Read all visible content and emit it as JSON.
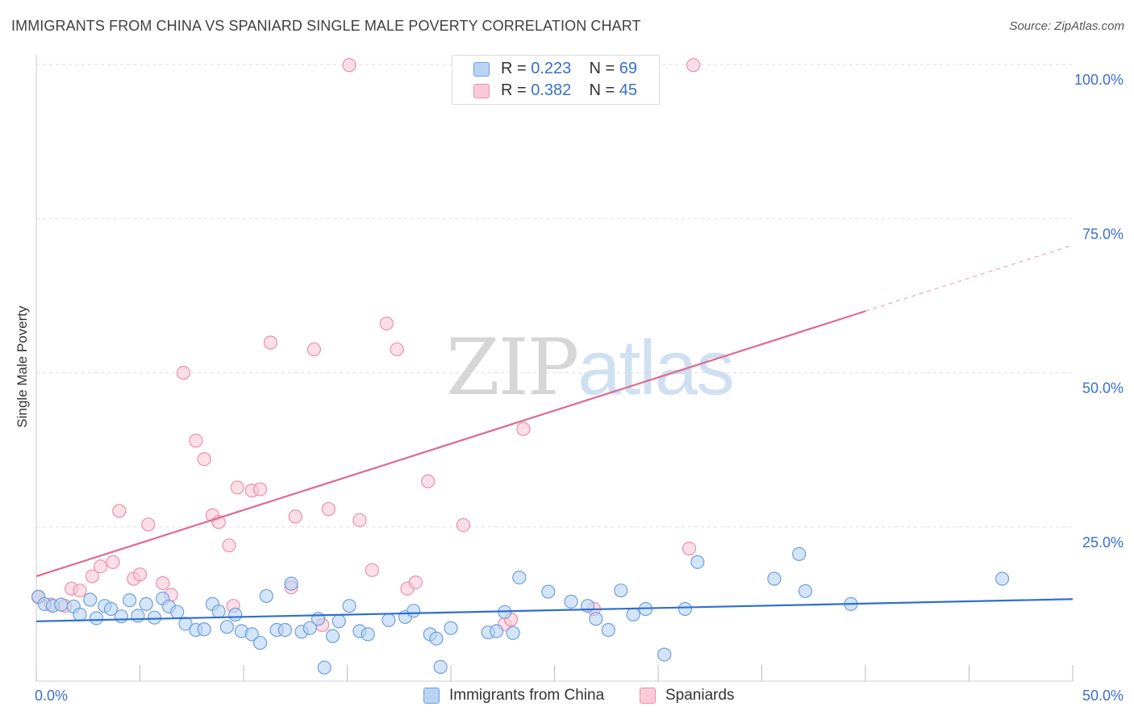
{
  "title": "IMMIGRANTS FROM CHINA VS SPANIARD SINGLE MALE POVERTY CORRELATION CHART",
  "source": "Source: ZipAtlas.com",
  "watermark": {
    "zip": "ZIP",
    "atlas": "atlas"
  },
  "legend": {
    "rows": [
      {
        "r_label": "R = ",
        "r_value": "0.223",
        "n_label": "N = ",
        "n_value": "69"
      },
      {
        "r_label": "R = ",
        "r_value": "0.382",
        "n_label": "N = ",
        "n_value": "45"
      }
    ]
  },
  "bottom_legend": [
    "Immigrants from China",
    "Spaniards"
  ],
  "colors": {
    "china_fill": "#b8d3f4",
    "china_stroke": "#6e9ee0",
    "china_line": "#2f6fcd",
    "spain_fill": "#fbc9d7",
    "spain_stroke": "#ec8fab",
    "spain_line": "#e0698f",
    "tick_label": "#3a6fc9",
    "grid": "#dddddd"
  },
  "chart_data": {
    "type": "scatter",
    "title": "IMMIGRANTS FROM CHINA VS SPANIARD SINGLE MALE POVERTY CORRELATION CHART",
    "xlabel": "",
    "ylabel": "Single Male Poverty",
    "xlim": [
      0,
      50
    ],
    "ylim": [
      0,
      100
    ],
    "x_tick_labels": [
      "0.0%",
      "50.0%"
    ],
    "y_ticks": [
      25,
      50,
      75,
      100
    ],
    "y_tick_labels": [
      "25.0%",
      "50.0%",
      "75.0%",
      "100.0%"
    ],
    "grid": true,
    "series": [
      {
        "name": "Immigrants from China",
        "r": 0.223,
        "n": 69,
        "trend": {
          "x": [
            0,
            50
          ],
          "y": [
            9.7,
            13.3
          ]
        },
        "points": [
          [
            0.1,
            13.7
          ],
          [
            0.4,
            12.5
          ],
          [
            0.8,
            12.2
          ],
          [
            1.2,
            12.4
          ],
          [
            1.8,
            12.1
          ],
          [
            2.1,
            10.8
          ],
          [
            2.6,
            13.2
          ],
          [
            2.9,
            10.2
          ],
          [
            3.3,
            12.2
          ],
          [
            3.6,
            11.7
          ],
          [
            4.1,
            10.5
          ],
          [
            4.5,
            13.1
          ],
          [
            4.9,
            10.6
          ],
          [
            5.3,
            12.5
          ],
          [
            5.7,
            10.3
          ],
          [
            6.1,
            13.4
          ],
          [
            6.4,
            12.1
          ],
          [
            6.8,
            11.2
          ],
          [
            7.2,
            9.3
          ],
          [
            7.7,
            8.3
          ],
          [
            8.1,
            8.4
          ],
          [
            8.5,
            12.5
          ],
          [
            8.8,
            11.3
          ],
          [
            9.2,
            8.8
          ],
          [
            9.6,
            10.8
          ],
          [
            9.9,
            8.1
          ],
          [
            10.4,
            7.6
          ],
          [
            10.8,
            6.2
          ],
          [
            11.1,
            13.8
          ],
          [
            11.6,
            8.3
          ],
          [
            12.0,
            8.3
          ],
          [
            12.3,
            15.8
          ],
          [
            12.8,
            8.0
          ],
          [
            13.2,
            8.6
          ],
          [
            13.6,
            10.1
          ],
          [
            13.9,
            2.2
          ],
          [
            14.3,
            7.3
          ],
          [
            14.6,
            9.7
          ],
          [
            15.1,
            12.2
          ],
          [
            15.6,
            8.1
          ],
          [
            16.0,
            7.6
          ],
          [
            17.0,
            9.9
          ],
          [
            17.8,
            10.4
          ],
          [
            18.2,
            11.4
          ],
          [
            19.0,
            7.6
          ],
          [
            19.3,
            6.9
          ],
          [
            19.5,
            2.3
          ],
          [
            20.0,
            8.6
          ],
          [
            21.8,
            7.9
          ],
          [
            22.2,
            8.1
          ],
          [
            22.6,
            11.2
          ],
          [
            23.0,
            7.8
          ],
          [
            23.3,
            16.8
          ],
          [
            24.7,
            14.5
          ],
          [
            25.8,
            12.9
          ],
          [
            26.6,
            12.2
          ],
          [
            27.0,
            10.1
          ],
          [
            27.6,
            8.3
          ],
          [
            28.2,
            14.7
          ],
          [
            28.8,
            10.8
          ],
          [
            29.4,
            11.7
          ],
          [
            30.3,
            4.3
          ],
          [
            31.3,
            11.7
          ],
          [
            31.9,
            19.3
          ],
          [
            35.6,
            16.6
          ],
          [
            36.8,
            20.6
          ],
          [
            37.1,
            14.6
          ],
          [
            39.3,
            12.5
          ],
          [
            46.6,
            16.6
          ]
        ]
      },
      {
        "name": "Spaniards",
        "r": 0.382,
        "n": 45,
        "trend": {
          "x": [
            0,
            40
          ],
          "y": [
            17,
            60
          ]
        },
        "trend_extension": {
          "x": [
            40,
            50
          ],
          "y": [
            60,
            70.7
          ]
        },
        "points": [
          [
            0.1,
            13.6
          ],
          [
            0.7,
            12.4
          ],
          [
            1.4,
            12.2
          ],
          [
            1.7,
            15.0
          ],
          [
            2.1,
            14.7
          ],
          [
            2.7,
            17.0
          ],
          [
            3.1,
            18.6
          ],
          [
            3.7,
            19.3
          ],
          [
            4.0,
            27.6
          ],
          [
            4.7,
            16.6
          ],
          [
            5.0,
            17.3
          ],
          [
            5.4,
            25.4
          ],
          [
            6.1,
            15.9
          ],
          [
            6.5,
            14.0
          ],
          [
            7.1,
            50.0
          ],
          [
            7.7,
            39.0
          ],
          [
            8.1,
            36.0
          ],
          [
            8.5,
            26.9
          ],
          [
            8.8,
            25.8
          ],
          [
            9.3,
            22.0
          ],
          [
            9.5,
            12.2
          ],
          [
            9.7,
            31.4
          ],
          [
            10.4,
            30.9
          ],
          [
            10.8,
            31.1
          ],
          [
            11.3,
            54.9
          ],
          [
            12.3,
            15.2
          ],
          [
            12.5,
            26.7
          ],
          [
            13.4,
            53.8
          ],
          [
            13.8,
            9.1
          ],
          [
            14.1,
            27.9
          ],
          [
            15.1,
            99.9
          ],
          [
            15.6,
            26.1
          ],
          [
            16.2,
            18.0
          ],
          [
            16.9,
            58.0
          ],
          [
            17.4,
            53.8
          ],
          [
            17.9,
            15.0
          ],
          [
            18.3,
            16.0
          ],
          [
            18.9,
            32.4
          ],
          [
            20.6,
            25.3
          ],
          [
            22.6,
            9.2
          ],
          [
            22.9,
            10.0
          ],
          [
            23.5,
            40.9
          ],
          [
            26.9,
            11.7
          ],
          [
            31.5,
            21.5
          ],
          [
            31.7,
            99.9
          ]
        ]
      }
    ]
  }
}
